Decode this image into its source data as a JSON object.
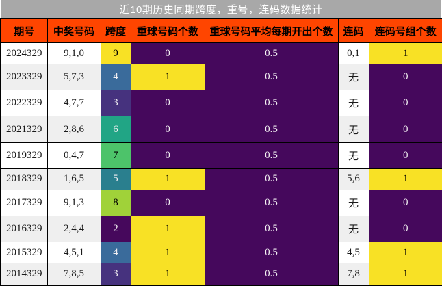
{
  "title": "近10期历史同期跨度，重号，连码数据统计",
  "chart_data": {
    "type": "table",
    "title": "近10期历史同期跨度，重号，连码数据统计",
    "columns": [
      "期号",
      "中奖号码",
      "跨度",
      "重球号码个数",
      "重球号码平均每期开出个数",
      "连码",
      "连码号组个数"
    ],
    "rows": [
      [
        "2024329",
        "9,1,0",
        "9",
        "0",
        "0.5",
        "0,1",
        "1"
      ],
      [
        "2023329",
        "5,7,3",
        "4",
        "1",
        "0.5",
        "无",
        "0"
      ],
      [
        "2022329",
        "4,7,7",
        "3",
        "0",
        "0.5",
        "无",
        "0"
      ],
      [
        "2021329",
        "2,8,6",
        "6",
        "0",
        "0.5",
        "无",
        "0"
      ],
      [
        "2019329",
        "0,4,7",
        "7",
        "0",
        "0.5",
        "无",
        "0"
      ],
      [
        "2018329",
        "1,6,5",
        "5",
        "1",
        "0.5",
        "5,6",
        "1"
      ],
      [
        "2017329",
        "9,1,3",
        "8",
        "0",
        "0.5",
        "无",
        "0"
      ],
      [
        "2016329",
        "2,4,4",
        "2",
        "1",
        "0.5",
        "无",
        "0"
      ],
      [
        "2015329",
        "4,5,1",
        "4",
        "1",
        "0.5",
        "4,5",
        "1"
      ],
      [
        "2014329",
        "7,8,5",
        "3",
        "1",
        "0.5",
        "7,8",
        "1"
      ]
    ]
  },
  "colors": {
    "title_bg": "#a8a8a8",
    "title_text": "#ffffff",
    "header_bg": "#ff4500",
    "header_text": "#000000",
    "border": "#000000",
    "row_white": "#ffffff",
    "row_gray": "#efefef",
    "body_text": "#1a1a1a",
    "low_bg": "#45085c",
    "low_text": "#f2eff2",
    "high_bg": "#f8e125",
    "high_text": "#000000",
    "span_scale": {
      "2": {
        "bg": "#46085c",
        "text": "#f2eff2"
      },
      "3": {
        "bg": "#46327e",
        "text": "#f2eff2"
      },
      "4": {
        "bg": "#3a6b9b",
        "text": "#f2eff2"
      },
      "5": {
        "bg": "#2a7f8e",
        "text": "#f2eff2"
      },
      "6": {
        "bg": "#21a585",
        "text": "#f2eff2"
      },
      "7": {
        "bg": "#4dc36a",
        "text": "#000000"
      },
      "8": {
        "bg": "#a0d239",
        "text": "#000000"
      },
      "9": {
        "bg": "#f8e125",
        "text": "#000000"
      }
    }
  }
}
